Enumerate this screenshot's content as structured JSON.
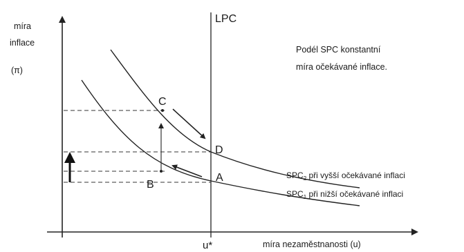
{
  "y_axis_label": {
    "line1": "míra",
    "line2": "inflace",
    "line3": "(π)"
  },
  "x_axis_label": "míra nezaměstnanosti (u)",
  "u_star_label": "u*",
  "lpc_label": "LPC",
  "note": {
    "line1": "Podél SPC konstantní",
    "line2": "míra očekávané inflace."
  },
  "points": {
    "A": "A",
    "B": "B",
    "C": "C",
    "D": "D"
  },
  "spc2": {
    "prefix": "SPC",
    "sub": "2",
    "suffix": " při vyšší očekávané inflaci"
  },
  "spc1": {
    "prefix": "SPC",
    "sub": "1",
    "suffix": " při nižší očekávané inflaci"
  }
}
